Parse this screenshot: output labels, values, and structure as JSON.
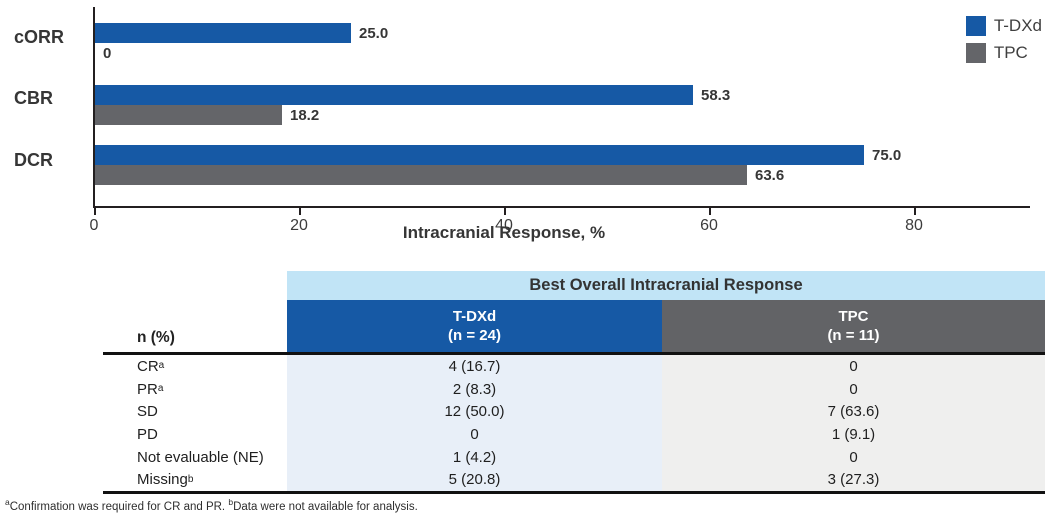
{
  "chart_data": {
    "type": "bar",
    "orientation": "horizontal",
    "xlabel": "Intracranial Response, %",
    "categories": [
      "cORR",
      "CBR",
      "DCR"
    ],
    "series": [
      {
        "name": "T-DXd",
        "color": "#1659a5",
        "values": [
          25.0,
          58.3,
          75.0
        ],
        "labels": [
          "25.0",
          "58.3",
          "75.0"
        ]
      },
      {
        "name": "TPC",
        "color": "#646569",
        "values": [
          0,
          18.2,
          63.6
        ],
        "labels": [
          "0",
          "18.2",
          "63.6"
        ]
      }
    ],
    "xticks": [
      0,
      20,
      40,
      60,
      80
    ],
    "xlim": [
      0,
      91
    ],
    "grid": false,
    "legend_position": "top-right"
  },
  "legend": {
    "items": [
      {
        "label": "T-DXd",
        "color": "#1659a5"
      },
      {
        "label": "TPC",
        "color": "#646569"
      }
    ]
  },
  "table": {
    "title": "Best Overall Intracranial Response",
    "row_header_label": "n (%)",
    "columns": [
      {
        "label": "T-DXd",
        "sublabel": "(n = 24)",
        "header_bg": "#1659a5",
        "body_bg": "#e8eff8"
      },
      {
        "label": "TPC",
        "sublabel": "(n = 11)",
        "header_bg": "#626366",
        "body_bg": "#efefee"
      }
    ],
    "rows": [
      {
        "label": "CR",
        "sup": "a",
        "tdxd": "4 (16.7)",
        "tpc": "0"
      },
      {
        "label": "PR",
        "sup": "a",
        "tdxd": "2 (8.3)",
        "tpc": "0"
      },
      {
        "label": "SD",
        "sup": "",
        "tdxd": "12 (50.0)",
        "tpc": "7 (63.6)"
      },
      {
        "label": "PD",
        "sup": "",
        "tdxd": "0",
        "tpc": "1 (9.1)"
      },
      {
        "label": "Not evaluable (NE)",
        "sup": "",
        "tdxd": "1 (4.2)",
        "tpc": "0"
      },
      {
        "label": "Missing",
        "sup": "b",
        "tdxd": "5 (20.8)",
        "tpc": "3 (27.3)"
      }
    ]
  },
  "footnote": {
    "sup1": "a",
    "text1": "Confirmation was required for CR and PR. ",
    "sup2": "b",
    "text2": "Data were not available for analysis."
  }
}
